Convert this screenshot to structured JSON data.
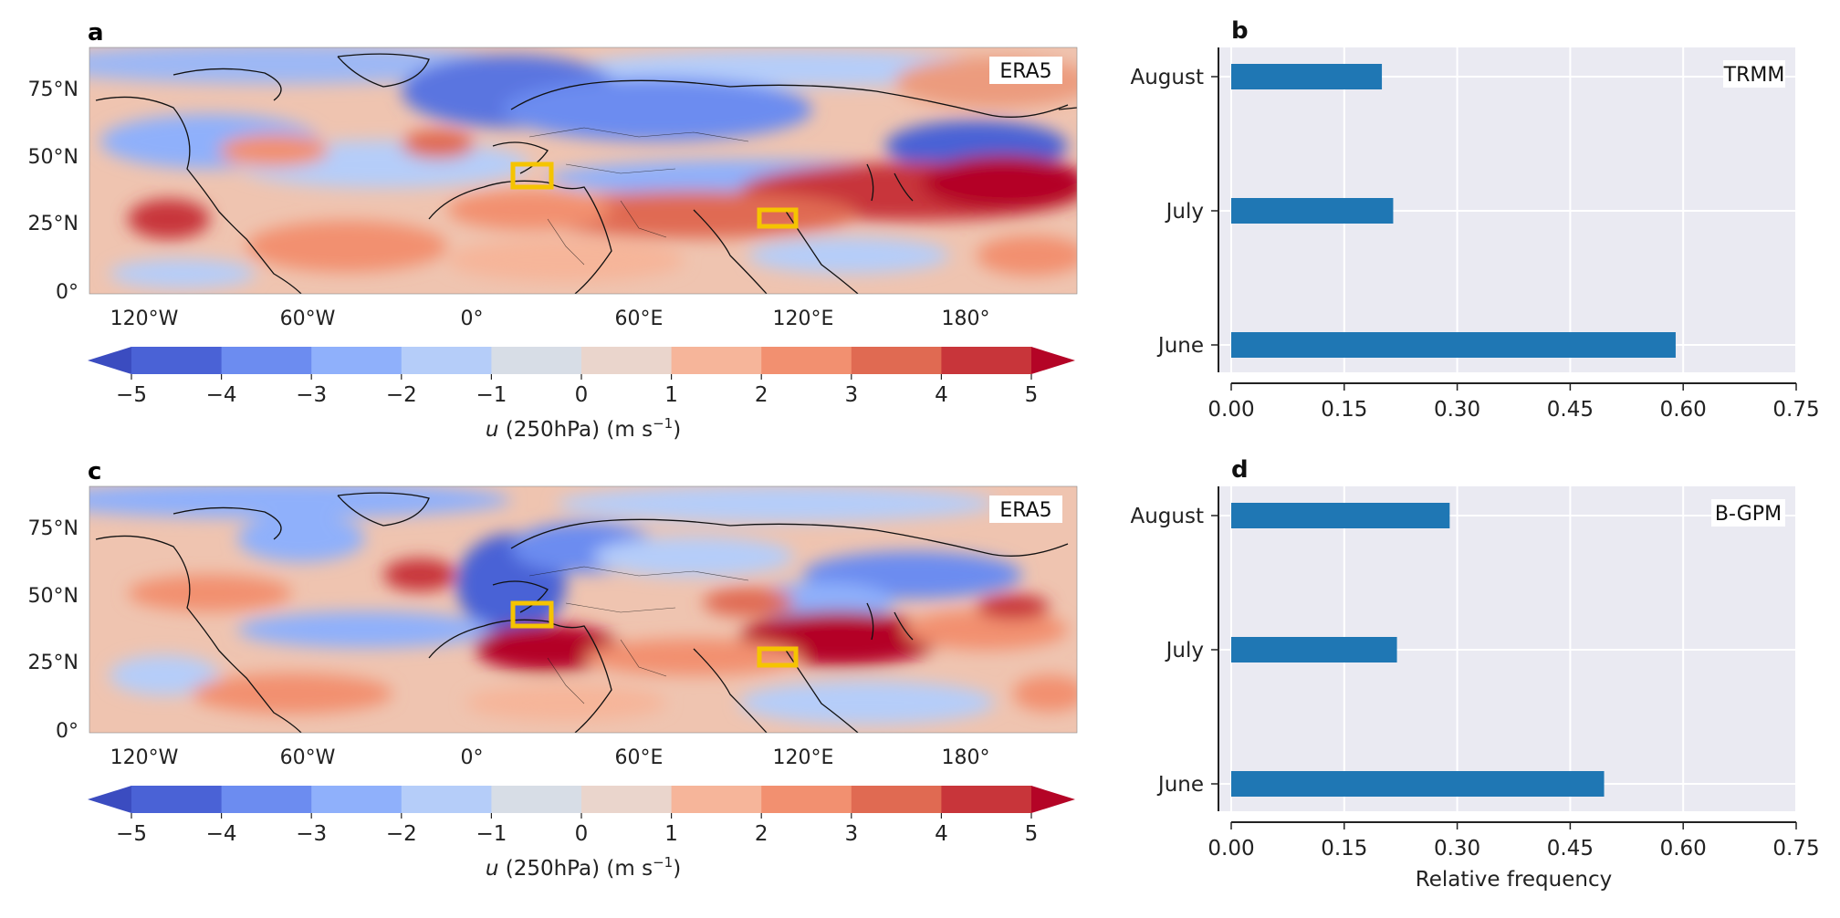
{
  "maps": [
    {
      "panel_label": "a",
      "dataset": "ERA5",
      "lon_ticks": [
        "120°W",
        "60°W",
        "0°",
        "60°E",
        "120°E",
        "180°"
      ],
      "lat_ticks": [
        "75°N",
        "50°N",
        "25°N",
        "0°"
      ],
      "colorbar": {
        "ticks": [
          "−5",
          "−4",
          "−3",
          "−2",
          "−1",
          "0",
          "1",
          "2",
          "3",
          "4",
          "5"
        ],
        "colors": [
          "#4a62d6",
          "#6c8cf0",
          "#8fb0fb",
          "#b5cdf9",
          "#d7dde6",
          "#ead5cc",
          "#f6b59a",
          "#f29070",
          "#e06a52",
          "#c8353a"
        ],
        "extend_low": "#3b4cc0",
        "extend_high": "#b40426",
        "label_var": "u",
        "label_rest": " (250hPa) (m s",
        "label_exp": "−1",
        "label_close": ")"
      }
    },
    {
      "panel_label": "c",
      "dataset": "ERA5",
      "lon_ticks": [
        "120°W",
        "60°W",
        "0°",
        "60°E",
        "120°E",
        "180°"
      ],
      "lat_ticks": [
        "75°N",
        "50°N",
        "25°N",
        "0°"
      ],
      "colorbar": {
        "ticks": [
          "−5",
          "−4",
          "−3",
          "−2",
          "−1",
          "0",
          "1",
          "2",
          "3",
          "4",
          "5"
        ],
        "colors": [
          "#4a62d6",
          "#6c8cf0",
          "#8fb0fb",
          "#b5cdf9",
          "#d7dde6",
          "#ead5cc",
          "#f6b59a",
          "#f29070",
          "#e06a52",
          "#c8353a"
        ],
        "extend_low": "#3b4cc0",
        "extend_high": "#b40426",
        "label_var": "u",
        "label_rest": " (250hPa) (m s",
        "label_exp": "−1",
        "label_close": ")"
      }
    }
  ],
  "highlight_box_color": "#f5c400",
  "chart_data": [
    {
      "type": "bar",
      "orientation": "horizontal",
      "panel_label": "b",
      "annotation": "TRMM",
      "categories": [
        "June",
        "July",
        "August"
      ],
      "values": [
        0.59,
        0.215,
        0.2
      ],
      "xlim": [
        0,
        0.75
      ],
      "xticks": [
        "0.00",
        "0.15",
        "0.30",
        "0.45",
        "0.60",
        "0.75"
      ],
      "xlabel": "",
      "bar_color": "#1f77b4",
      "background": "#eaeaf2",
      "grid": true
    },
    {
      "type": "bar",
      "orientation": "horizontal",
      "panel_label": "d",
      "annotation": "B-GPM",
      "categories": [
        "June",
        "July",
        "August"
      ],
      "values": [
        0.495,
        0.22,
        0.29
      ],
      "xlim": [
        0,
        0.75
      ],
      "xticks": [
        "0.00",
        "0.15",
        "0.30",
        "0.45",
        "0.60",
        "0.75"
      ],
      "xlabel": "Relative frequency",
      "bar_color": "#1f77b4",
      "background": "#eaeaf2",
      "grid": true
    }
  ]
}
